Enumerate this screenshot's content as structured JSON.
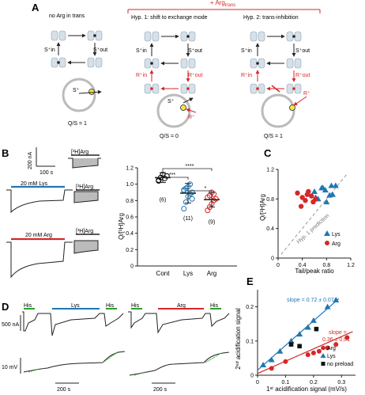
{
  "panel_labels": {
    "a": "A",
    "b": "B",
    "c": "C",
    "d": "D",
    "e": "E"
  },
  "panel_a": {
    "col1_title": "no Arg in trans",
    "bracket_title_pre": "+ Arg",
    "bracket_title_sub": "trans",
    "col2_title": "Hyp. 1: shift to exchange mode",
    "col3_title": "Hyp. 2: trans-inhibition",
    "s_in": "S⁺in",
    "s_out": "S⁺out",
    "r_in": "R⁺in",
    "r_out": "R⁺out",
    "s_plus": "S⁺",
    "r_plus": "R⁺",
    "q1": "Q/S = 1",
    "q2": "Q/S = 0",
    "q3": "Q/S = 1"
  },
  "panel_b": {
    "scale_current": "200 nA",
    "scale_time": "100 s",
    "label_h3arg_1": "[³H]Arg",
    "label_lys": "20 mM Lys",
    "label_h3arg_2": "[³H]Arg",
    "label_arg": "20 mM Arg",
    "label_h3arg_3": "[³H]Arg",
    "ylabel": "Q/[³H]Arg",
    "sig_top": "****",
    "sig_mid": "***",
    "sig_low": "*",
    "colors": {
      "lys": "#1f77b4",
      "arg": "#d62728",
      "cont": "#000000"
    },
    "chart_data": {
      "type": "scatter",
      "categories": [
        "Cont",
        "Lys",
        "Arg"
      ],
      "ylim": [
        0,
        1.2
      ],
      "yticks": [
        "0",
        "0.2",
        "0.4",
        "0.6",
        "0.8",
        "1.0",
        "1.2"
      ],
      "n_labels": [
        "(6)",
        "(11)",
        "(9)"
      ],
      "means": [
        1.08,
        0.89,
        0.81
      ],
      "sems": [
        0.02,
        0.04,
        0.03
      ],
      "points": [
        [
          1.05,
          1.08,
          1.12,
          1.07,
          1.1,
          1.04
        ],
        [
          0.7,
          0.78,
          0.85,
          0.88,
          0.9,
          0.92,
          0.95,
          0.97,
          1.0,
          0.82,
          0.93
        ],
        [
          0.68,
          0.72,
          0.76,
          0.8,
          0.82,
          0.84,
          0.86,
          0.9,
          0.88
        ]
      ]
    }
  },
  "panel_c": {
    "ylabel": "Q/[³H]Arg",
    "xlabel": "Tail/peak ratio",
    "diag_label": "Hyp. 1 prediction",
    "legend_lys": "Lys",
    "legend_arg": "Arg",
    "chart_data": {
      "type": "scatter",
      "xlim": [
        0,
        1.2
      ],
      "ylim": [
        0,
        1.2
      ],
      "xticks": [
        "0",
        "0.4",
        "0.8",
        "1.2"
      ],
      "yticks": [
        "0",
        "0.4",
        "0.8",
        "1.2"
      ],
      "legend_position": "bottom-right",
      "series": [
        {
          "name": "Lys",
          "x": [
            0.72,
            0.78,
            0.6,
            0.95,
            0.85,
            0.66,
            0.8,
            0.88,
            0.9,
            0.74,
            0.62
          ],
          "y": [
            0.95,
            0.92,
            0.9,
            0.98,
            0.85,
            0.8,
            0.76,
            0.98,
            0.86,
            0.95,
            0.82
          ]
        },
        {
          "name": "Arg",
          "x": [
            0.32,
            0.4,
            0.45,
            0.5,
            0.55,
            0.38,
            0.58,
            0.48,
            0.62
          ],
          "y": [
            0.88,
            0.82,
            0.78,
            0.9,
            0.84,
            0.7,
            0.76,
            0.86,
            0.8
          ]
        }
      ]
    }
  },
  "panel_d": {
    "his1": "His",
    "lys": "Lys",
    "his2": "His",
    "his3": "His",
    "arg": "Arg",
    "his4": "His",
    "scale_current": "500 nA",
    "scale_voltage": "10 mV",
    "scale_time_1": "200 s",
    "scale_time_2": "200 s"
  },
  "panel_e": {
    "ylabel": "2ⁿᵈ acidification signal",
    "xlabel": "1ˢᵗ acidification signal (mV/s)",
    "slope_blue_1": "slope = 0.72 ± 0.07",
    "slope_red_1": "slope =",
    "slope_red_2": "0.36 ± 0.01",
    "legend_arg": "Arg",
    "legend_lys": "Lys",
    "legend_nopre": "no preload",
    "chart_data": {
      "type": "scatter",
      "xlim": [
        0,
        0.35
      ],
      "ylim": [
        0,
        0.25
      ],
      "xticks": [
        "0",
        "0.1",
        "0.2",
        "0.3"
      ],
      "yticks": [
        "0",
        "0.1",
        "0.2"
      ],
      "legend_position": "bottom-right",
      "series": [
        {
          "name": "Arg",
          "x": [
            0.05,
            0.1,
            0.18,
            0.2,
            0.22,
            0.25,
            0.28,
            0.32
          ],
          "y": [
            0.02,
            0.04,
            0.06,
            0.065,
            0.07,
            0.08,
            0.09,
            0.11
          ]
        },
        {
          "name": "Lys",
          "x": [
            0.02,
            0.05,
            0.08,
            0.12,
            0.15,
            0.18,
            0.2,
            0.25,
            0.28
          ],
          "y": [
            0.03,
            0.045,
            0.07,
            0.1,
            0.12,
            0.14,
            0.16,
            0.2,
            0.22
          ]
        },
        {
          "name": "no preload",
          "x": [
            0.12,
            0.15,
            0.21
          ],
          "y": [
            0.09,
            0.085,
            0.135
          ]
        }
      ]
    }
  }
}
